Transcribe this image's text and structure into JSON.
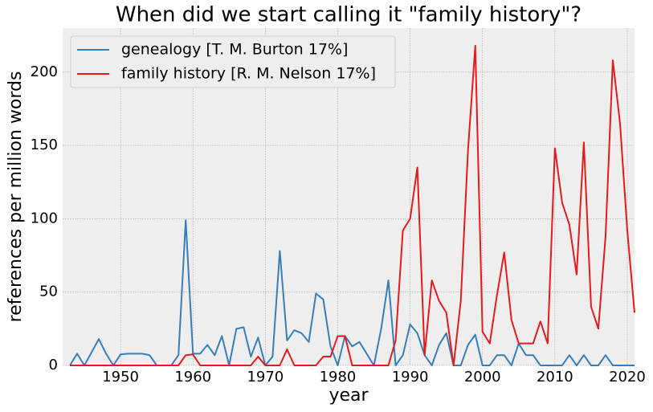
{
  "chart_data": {
    "type": "line",
    "title": "When did we start calling it \"family history\"?",
    "xlabel": "year",
    "ylabel": "references per million words",
    "x": [
      1943,
      1944,
      1945,
      1946,
      1947,
      1948,
      1949,
      1950,
      1951,
      1952,
      1953,
      1954,
      1955,
      1956,
      1957,
      1958,
      1959,
      1960,
      1961,
      1962,
      1963,
      1964,
      1965,
      1966,
      1967,
      1968,
      1969,
      1970,
      1971,
      1972,
      1973,
      1974,
      1975,
      1976,
      1977,
      1978,
      1979,
      1980,
      1981,
      1982,
      1983,
      1984,
      1985,
      1986,
      1987,
      1988,
      1989,
      1990,
      1991,
      1992,
      1993,
      1994,
      1995,
      1996,
      1997,
      1998,
      1999,
      2000,
      2001,
      2002,
      2003,
      2004,
      2005,
      2006,
      2007,
      2008,
      2009,
      2010,
      2011,
      2012,
      2013,
      2014,
      2015,
      2016,
      2017,
      2018,
      2019,
      2020,
      2021
    ],
    "series": [
      {
        "name": "genealogy [T. M. Burton 17%]",
        "color": "#377eb8",
        "values": [
          0,
          8,
          0,
          9,
          18,
          8,
          0,
          7.5,
          8,
          8,
          8,
          7,
          0,
          0,
          0,
          7,
          99,
          8,
          8,
          14,
          7,
          20,
          0,
          25,
          26,
          6,
          19,
          0,
          6,
          78,
          17,
          24,
          22,
          16,
          49,
          45,
          13,
          0,
          20,
          13,
          16,
          8,
          0,
          25,
          58,
          0,
          7,
          28,
          22,
          7,
          0,
          14,
          22,
          0,
          0,
          14,
          21,
          0,
          0,
          7,
          7,
          0,
          15,
          7,
          7,
          0,
          0,
          0,
          0,
          7,
          0,
          7,
          0,
          0,
          7,
          0,
          0,
          0,
          0
        ]
      },
      {
        "name": "family history [R. M. Nelson 17%]",
        "color": "#e41a1c",
        "values": [
          0,
          0,
          0,
          0,
          0,
          0,
          0,
          0,
          0,
          0,
          0,
          0,
          0,
          0,
          0,
          0,
          7,
          7.5,
          0,
          0,
          0,
          0,
          0,
          0,
          0,
          0,
          6,
          0,
          0,
          0,
          11,
          0,
          0,
          0,
          0,
          6,
          6,
          20,
          20,
          0,
          0,
          0,
          0,
          0,
          0,
          17,
          92,
          100,
          135,
          7,
          58,
          44,
          36,
          0,
          44,
          147,
          218,
          23,
          15,
          48,
          77,
          31,
          15,
          15,
          15,
          30,
          15,
          148,
          111,
          96,
          62,
          152,
          40,
          25,
          88,
          208,
          165,
          92,
          36
        ]
      }
    ],
    "xlim": [
      1942,
      2021
    ],
    "xticks": [
      1950,
      1960,
      1970,
      1980,
      1990,
      2000,
      2010,
      2020
    ],
    "ylim": [
      0,
      230
    ],
    "yticks": [
      0,
      50,
      100,
      150,
      200
    ],
    "grid": true,
    "legend": "upper left"
  }
}
